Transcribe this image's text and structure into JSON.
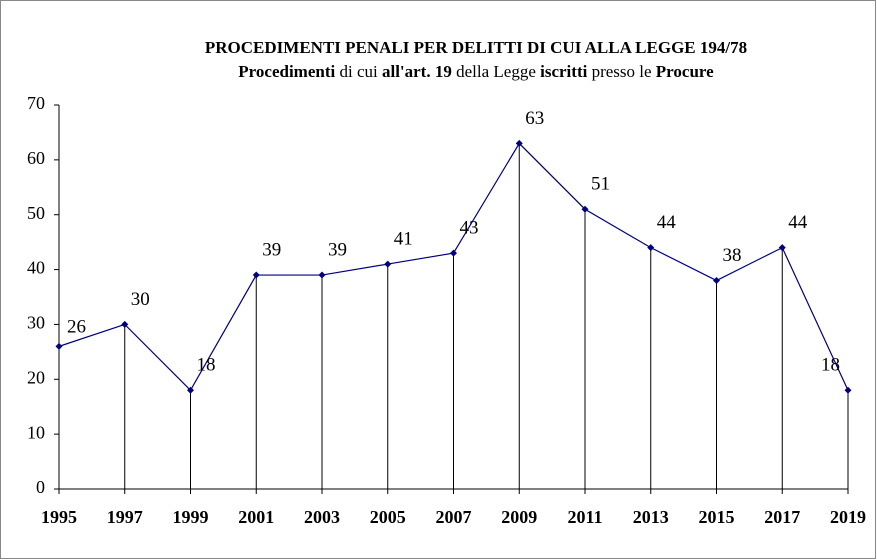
{
  "chart_data": {
    "type": "line",
    "title": "PROCEDIMENTI PENALI PER DELITTI DI CUI ALLA LEGGE 194/78",
    "subtitle": [
      {
        "text": "Procedimenti",
        "bold": true
      },
      {
        "text": " di cui ",
        "bold": false
      },
      {
        "text": "all'art. 19",
        "bold": true
      },
      {
        "text": " della Legge ",
        "bold": false
      },
      {
        "text": "iscritti",
        "bold": true
      },
      {
        "text": " presso le ",
        "bold": false
      },
      {
        "text": "Procure",
        "bold": true
      }
    ],
    "x": [
      1995,
      1997,
      1999,
      2001,
      2003,
      2005,
      2007,
      2009,
      2011,
      2013,
      2015,
      2017,
      2019
    ],
    "values": [
      26,
      30,
      18,
      39,
      39,
      41,
      43,
      63,
      51,
      44,
      38,
      44,
      18
    ],
    "color": "#000080",
    "xlim": [
      1995,
      2019
    ],
    "xticks": [
      1995,
      1997,
      1999,
      2001,
      2003,
      2005,
      2007,
      2009,
      2011,
      2013,
      2015,
      2017,
      2019
    ],
    "ylim": [
      0,
      70
    ],
    "yticks": [
      0,
      10,
      20,
      30,
      40,
      50,
      60,
      70
    ],
    "drop_lines": true,
    "grid": false
  }
}
